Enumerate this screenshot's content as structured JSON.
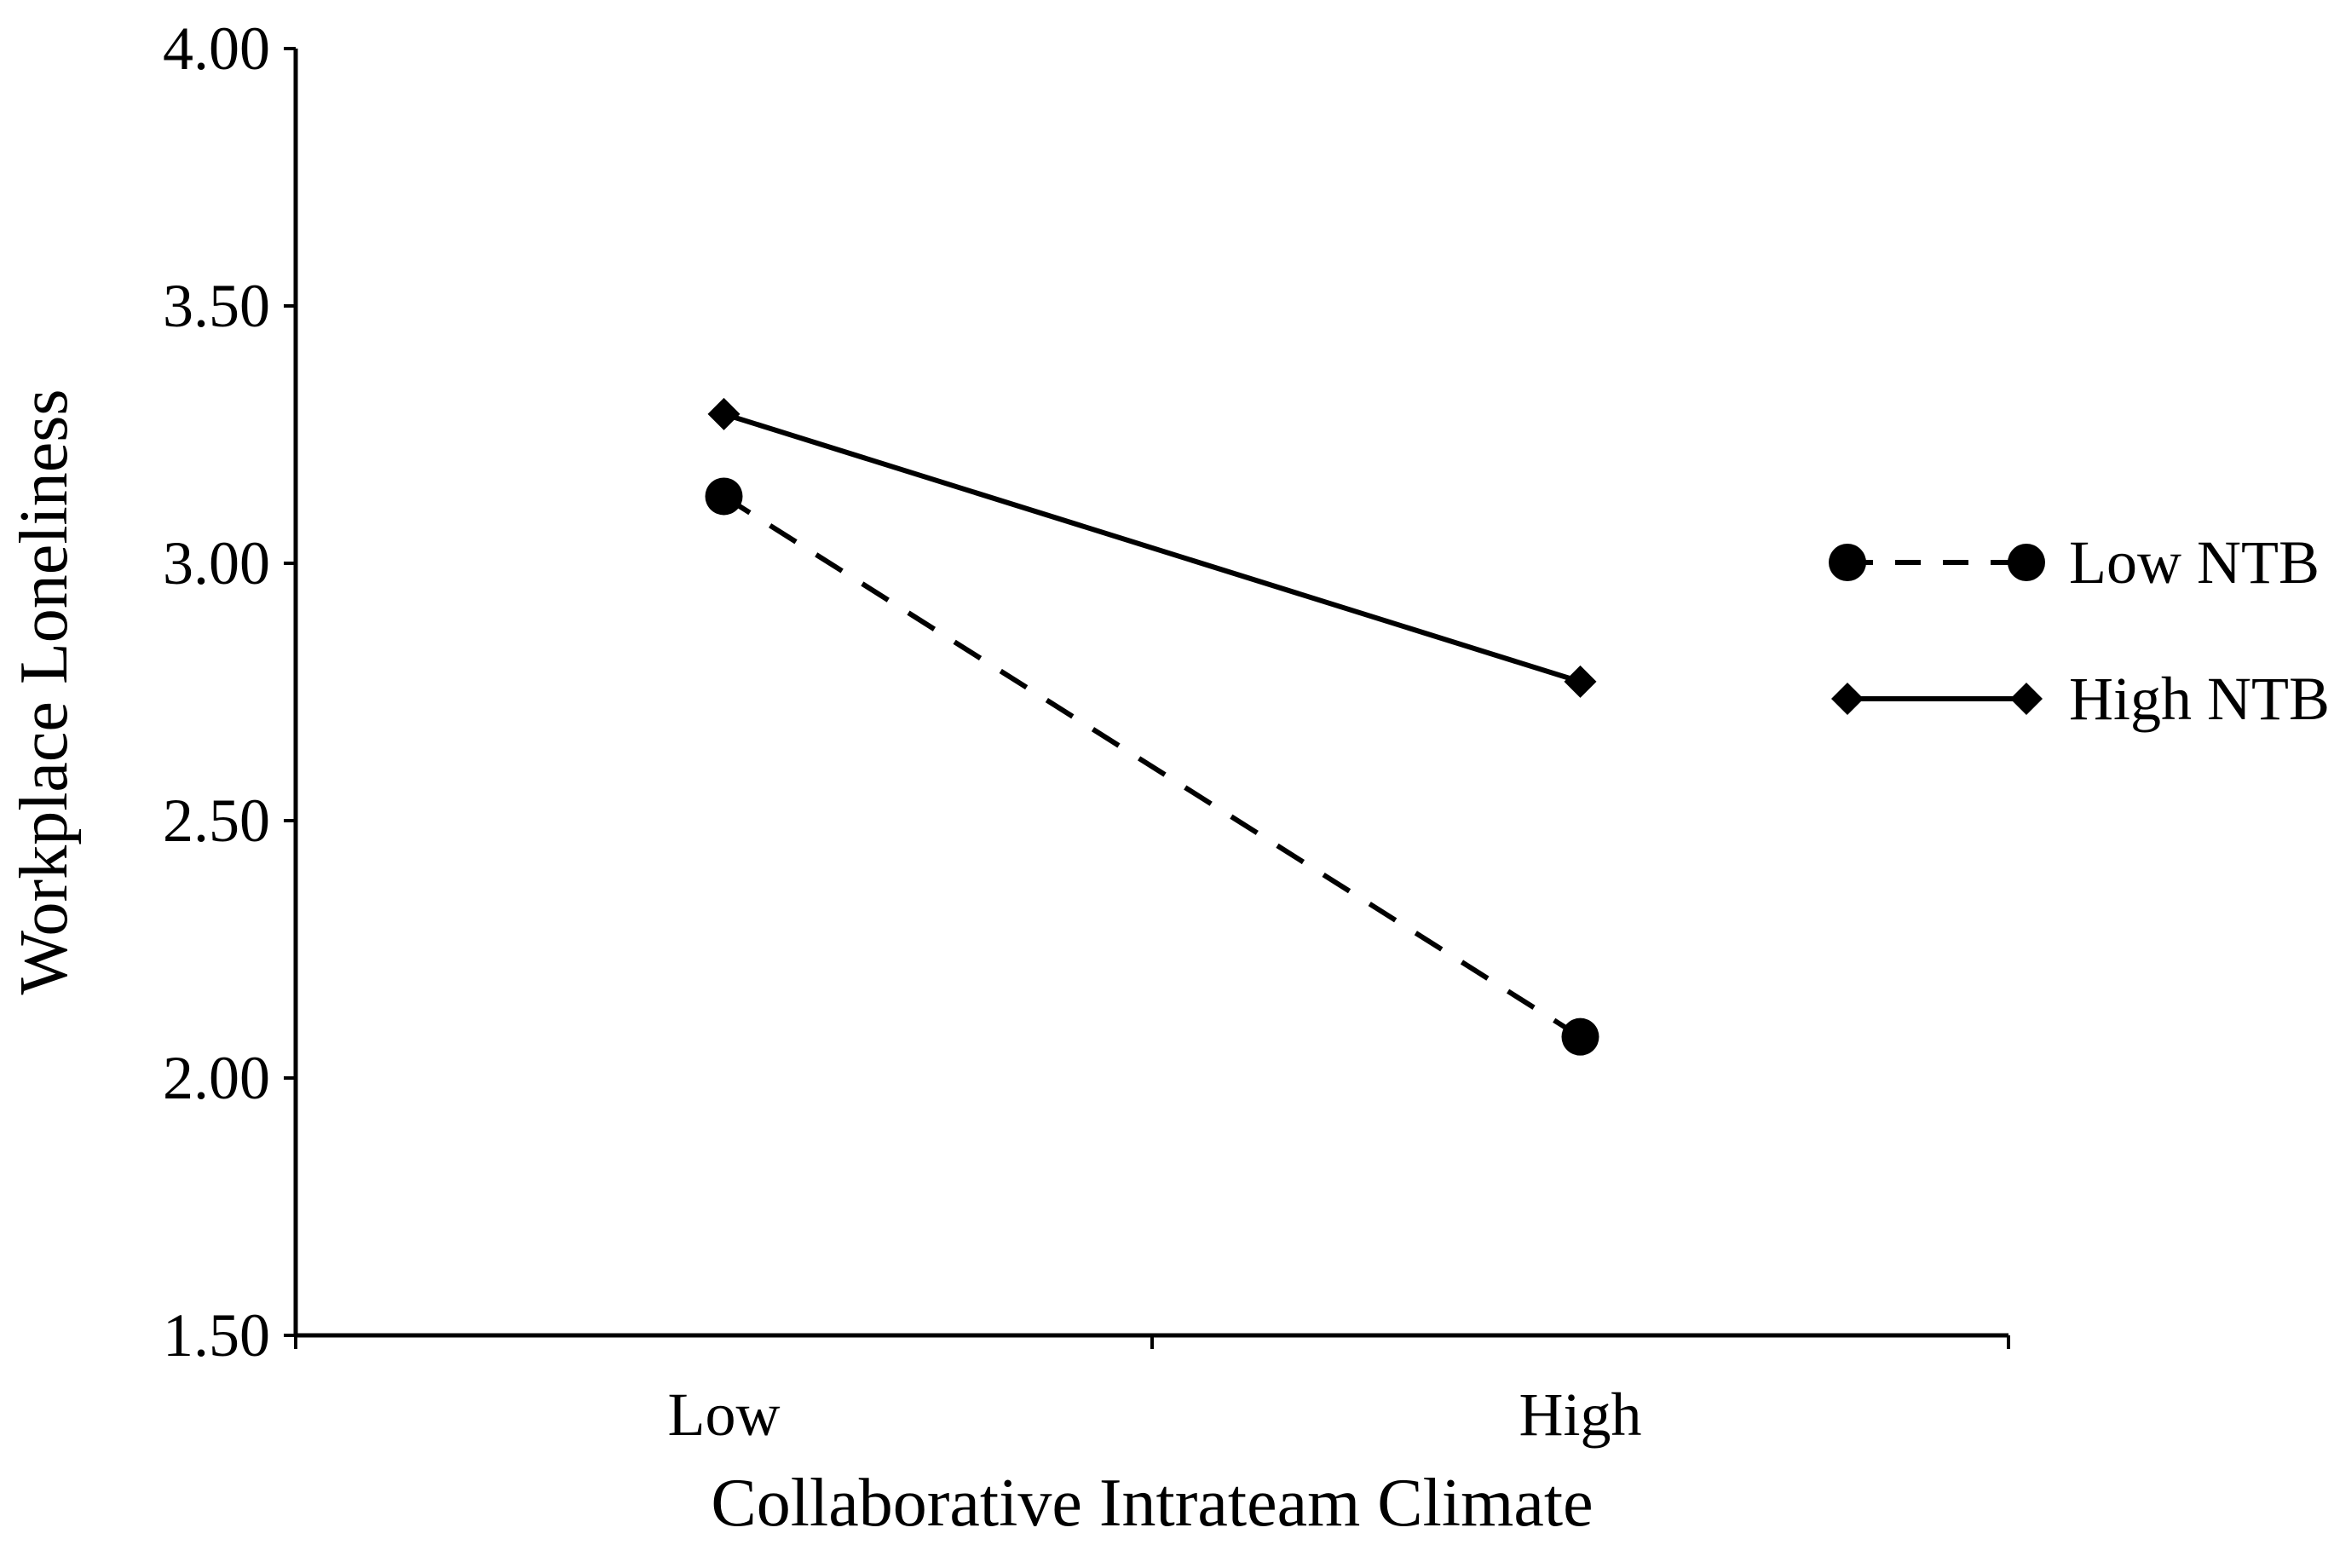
{
  "chart_data": {
    "type": "line",
    "title": "",
    "xlabel": "Collaborative Intrateam Climate",
    "ylabel": "Workplace Loneliness",
    "categories": [
      "Low",
      "High"
    ],
    "ylim": [
      1.5,
      4.0
    ],
    "yticks": [
      "1.50",
      "2.00",
      "2.50",
      "3.00",
      "3.50",
      "4.00"
    ],
    "grid": false,
    "legend_position": "right",
    "series": [
      {
        "name": "Low NTB",
        "values": [
          3.13,
          2.08
        ],
        "line_style": "dashed",
        "marker": "circle",
        "color": "#000000"
      },
      {
        "name": "High NTB",
        "values": [
          3.29,
          2.77
        ],
        "line_style": "solid",
        "marker": "diamond",
        "color": "#000000"
      }
    ]
  }
}
